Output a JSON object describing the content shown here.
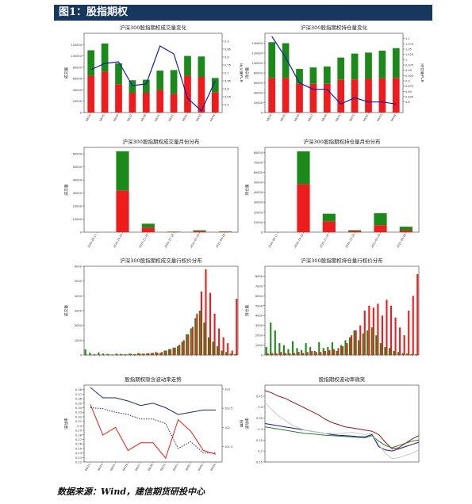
{
  "page": {
    "title": "图1：股指期权",
    "source": "数据来源：Wind，建信期货研投中心"
  },
  "colors": {
    "red": "#ee1c1c",
    "green": "#1b8a1b",
    "blue": "#1a1aa8",
    "darkblue": "#1e2a6e",
    "darkred": "#7a1a1a"
  },
  "chart_data": [
    {
      "id": "c1",
      "type": "bar+line",
      "title": "沪深300股指期权成交量变化",
      "ylabel": "成交量",
      "y2label": "成交量PCR",
      "categories": [
        "08/24",
        "08/25",
        "08/26",
        "08/27",
        "08/28",
        "08/31",
        "09/01",
        "09/02",
        "09/03",
        "09/04"
      ],
      "series": [
        {
          "name": "put",
          "color": "red",
          "values": [
            65000,
            72000,
            50000,
            35000,
            35000,
            40000,
            33000,
            65000,
            63000,
            36000
          ]
        },
        {
          "name": "call",
          "color": "green",
          "values": [
            45000,
            50000,
            37000,
            22000,
            23000,
            34000,
            42000,
            35000,
            36000,
            25000
          ]
        },
        {
          "name": "pcr",
          "color": "blue",
          "axis": "right",
          "values": [
            0.72,
            0.76,
            0.77,
            0.62,
            0.63,
            0.87,
            0.82,
            0.54,
            0.46,
            0.65
          ]
        }
      ],
      "ylim": [
        0,
        140000
      ],
      "y2lim": [
        0.45,
        0.95
      ],
      "yticks": [
        0,
        20000,
        40000,
        60000,
        80000,
        100000,
        120000
      ],
      "y2ticks": [
        0.5,
        0.55,
        0.6,
        0.65,
        0.7,
        0.75,
        0.8,
        0.85,
        0.9
      ]
    },
    {
      "id": "c2",
      "type": "bar+line",
      "title": "沪深300股指期权持仓量变化",
      "ylabel": "持仓量",
      "y2label": "持仓量PCR",
      "categories": [
        "08/24",
        "08/25",
        "08/26",
        "08/27",
        "08/28",
        "08/31",
        "09/01",
        "09/02",
        "09/03",
        "09/04"
      ],
      "series": [
        {
          "name": "put",
          "color": "red",
          "values": [
            70000,
            70000,
            58000,
            58000,
            58000,
            66000,
            67000,
            68000,
            69000,
            70000
          ]
        },
        {
          "name": "call",
          "color": "green",
          "values": [
            72000,
            70000,
            30000,
            33000,
            35000,
            45000,
            52000,
            53000,
            56000,
            60000
          ]
        },
        {
          "name": "pcr",
          "color": "blue",
          "axis": "right",
          "values": [
            1.11,
            1.01,
            0.89,
            0.86,
            0.86,
            0.79,
            0.82,
            0.8,
            0.8,
            0.79
          ]
        }
      ],
      "ylim": [
        0,
        160000
      ],
      "y2lim": [
        0.75,
        1.125
      ],
      "yticks": [
        0,
        20000,
        40000,
        60000,
        80000,
        100000,
        120000,
        140000
      ],
      "y2ticks": [
        0.8,
        0.825,
        0.85,
        0.875,
        0.9,
        0.925,
        0.95,
        0.975,
        1.0,
        1.025,
        1.05,
        1.075,
        1.1
      ]
    },
    {
      "id": "c3",
      "type": "stacked-bar",
      "title": "沪深300股指期权成交量月份分布",
      "ylabel": "成交量",
      "categories": [
        "2020-09-17",
        "2020-10-16",
        "2020-11-20",
        "2020-12-18",
        "2021-03-19",
        "2021-06-18"
      ],
      "series": [
        {
          "name": "put",
          "color": "red",
          "values": [
            0,
            32000,
            3500,
            250,
            800,
            300
          ]
        },
        {
          "name": "call",
          "color": "green",
          "values": [
            0,
            30000,
            3000,
            200,
            700,
            250
          ]
        }
      ],
      "ylim": [
        0,
        65000
      ],
      "yticks": [
        0,
        10000,
        20000,
        30000,
        40000,
        50000,
        60000
      ]
    },
    {
      "id": "c4",
      "type": "stacked-bar",
      "title": "沪深300股指期权持仓量月份分布",
      "ylabel": "持仓量",
      "categories": [
        "2020-09-17",
        "2020-10-16",
        "2020-11-20",
        "2020-12-18",
        "2021-03-19",
        "2021-06-18"
      ],
      "series": [
        {
          "name": "put",
          "color": "red",
          "values": [
            0,
            48000,
            11000,
            1200,
            7000,
            2000
          ]
        },
        {
          "name": "call",
          "color": "green",
          "values": [
            0,
            33000,
            7500,
            800,
            12000,
            3500
          ]
        }
      ],
      "ylim": [
        0,
        85000
      ],
      "yticks": [
        0,
        10000,
        20000,
        30000,
        40000,
        50000,
        60000,
        70000,
        80000
      ]
    },
    {
      "id": "c5",
      "type": "bar",
      "title": "沪深300股指期权成交量行权价分布",
      "ylabel": "成交量",
      "series": [
        {
          "name": "call",
          "color": "green",
          "values": [
            380,
            160,
            60,
            180,
            100,
            80,
            40,
            100,
            80,
            60,
            100,
            60,
            140,
            100,
            120,
            140,
            200,
            140,
            300,
            400,
            500,
            600,
            900,
            1400,
            1800,
            2500,
            3000,
            2200,
            1200,
            900,
            600,
            300,
            200,
            100,
            60
          ]
        },
        {
          "name": "put",
          "color": "red",
          "values": [
            20,
            20,
            30,
            20,
            20,
            40,
            20,
            40,
            40,
            40,
            80,
            60,
            100,
            80,
            120,
            140,
            160,
            200,
            300,
            400,
            500,
            700,
            1000,
            1400,
            1900,
            2800,
            4300,
            5800,
            4200,
            2800,
            1800,
            1200,
            800,
            300,
            3800
          ]
        }
      ],
      "ylim": [
        0,
        6000
      ],
      "yticks": [
        0,
        1000,
        2000,
        3000,
        4000,
        5000,
        6000
      ]
    },
    {
      "id": "c6",
      "type": "bar",
      "title": "沪深300股指期权持仓量行权价分布",
      "ylabel": "持仓量",
      "series": [
        {
          "name": "call",
          "color": "green",
          "values": [
            800,
            3300,
            2500,
            1200,
            1000,
            600,
            1400,
            700,
            500,
            1200,
            800,
            400,
            1300,
            700,
            800,
            1300,
            400,
            1000,
            1500,
            1800,
            2500,
            1500,
            2200,
            2500,
            2800,
            2000,
            1200,
            800,
            700,
            400,
            300,
            200,
            150,
            100,
            80
          ]
        },
        {
          "name": "put",
          "color": "red",
          "values": [
            150,
            200,
            150,
            300,
            200,
            150,
            200,
            300,
            200,
            300,
            400,
            300,
            300,
            400,
            500,
            600,
            700,
            900,
            1200,
            2000,
            2500,
            3000,
            4500,
            5000,
            4800,
            5200,
            4000,
            5600,
            5000,
            3800,
            2800,
            2000,
            4500,
            6000,
            8200
          ]
        }
      ],
      "ylim": [
        0,
        9000
      ],
      "yticks": [
        0,
        1000,
        2000,
        3000,
        4000,
        5000,
        6000,
        7000,
        8000
      ]
    },
    {
      "id": "c7",
      "type": "line",
      "title": "股指期权隐含波动率走势",
      "ylabel": "波动率",
      "y2label": "指数",
      "categories": [
        "08/21",
        "08/24",
        "08/25",
        "08/26",
        "08/27",
        "08/28",
        "08/31",
        "09/01",
        "09/02",
        "09/03",
        "09/04"
      ],
      "series": [
        {
          "name": "",
          "color": "darkblue",
          "values": [
            0.385,
            0.362,
            0.362,
            0.355,
            0.345,
            0.35,
            0.34,
            0.325,
            0.33,
            0.335,
            0.335
          ]
        },
        {
          "name": "",
          "color": "darkblue",
          "dash": true,
          "values": [
            0.34,
            0.338,
            0.33,
            0.325,
            0.315,
            0.315,
            0.305,
            0.25,
            0.265,
            0.24,
            0.24
          ]
        },
        {
          "name": "",
          "color": "red",
          "axis": "right",
          "values": [
            102.6,
            101.8,
            102.0,
            101.4,
            101.6,
            101.6,
            101.2,
            102.2,
            101.9,
            101.4,
            101.3
          ]
        }
      ],
      "ylim": [
        0.22,
        0.39
      ],
      "y2lim": [
        101.1,
        103.1
      ],
      "yticks": [
        0.22,
        0.23,
        0.24,
        0.25,
        0.26,
        0.27,
        0.28,
        0.29,
        0.3,
        0.31,
        0.32,
        0.33,
        0.34,
        0.35,
        0.36,
        0.37,
        0.38
      ],
      "y2ticks": [
        101.5,
        102.0,
        102.5,
        103.0
      ]
    },
    {
      "id": "c8",
      "type": "line",
      "title": "股指期权波动率微笑",
      "ylabel": "波动率",
      "series": [
        {
          "name": "",
          "color": "#8b1a1a",
          "values": [
            0.475,
            0.465,
            0.45,
            0.44,
            0.425,
            0.41,
            0.395,
            0.38,
            0.365,
            0.345,
            0.33,
            0.32,
            0.31,
            0.305,
            0.3,
            0.295,
            0.29,
            0.275,
            0.24,
            0.21,
            0.215,
            0.235,
            0.255,
            0.27
          ]
        },
        {
          "name": "",
          "color": "#1a1a80",
          "values": [
            0.325,
            0.32,
            0.315,
            0.31,
            0.305,
            0.3,
            0.295,
            0.29,
            0.285,
            0.28,
            0.275,
            0.272,
            0.27,
            0.268,
            0.265,
            0.265,
            0.275,
            0.22,
            0.205,
            0.2,
            0.21,
            0.22,
            0.23,
            0.24
          ]
        },
        {
          "name": "",
          "color": "#2e7d2e",
          "values": [
            0.31,
            0.305,
            0.3,
            0.295,
            0.29,
            0.285,
            0.28,
            0.278,
            0.275,
            0.272,
            0.27,
            0.268,
            0.266,
            0.264,
            0.262,
            0.26,
            0.27,
            0.245,
            0.225,
            0.215,
            0.225,
            0.235,
            0.245,
            0.25
          ]
        },
        {
          "name": "",
          "color": "#c8c8c8",
          "values": [
            0.42,
            0.39,
            0.36,
            0.34,
            0.32,
            0.305,
            0.295,
            0.29,
            0.285,
            0.28,
            0.28,
            0.28,
            0.282,
            0.285,
            0.28,
            0.275,
            0.28,
            0.23,
            0.19,
            0.165,
            0.17,
            0.18,
            0.19,
            0.205
          ]
        }
      ],
      "ylim": [
        0.15,
        0.5
      ],
      "yticks": [
        0.15,
        0.2,
        0.25,
        0.3,
        0.35,
        0.4,
        0.45
      ]
    }
  ]
}
